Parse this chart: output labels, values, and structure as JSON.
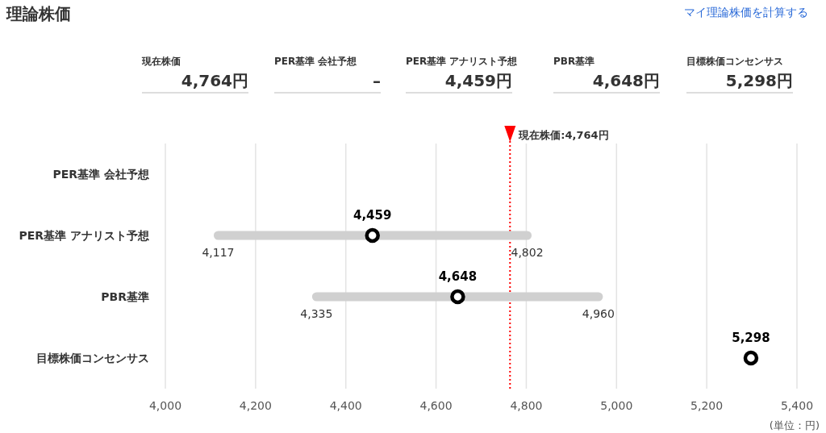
{
  "chart_data": [
    {
      "type": "other",
      "title": "理論株価",
      "annotations": [
        "マイ理論株価を計算する",
        "現在株価",
        "4,764円",
        "PER基準 会社予想",
        "–",
        "PER基準 アナリスト予想",
        "4,459円",
        "PBR基準",
        "4,648円",
        "目標株価コンセンサス",
        "5,298円"
      ]
    },
    {
      "type": "scatter",
      "orientation": "horizontal",
      "categories": [
        "PER基準 会社予想",
        "PER基準 アナリスト予想",
        "PBR基準",
        "目標株価コンセンサス"
      ],
      "series": [
        {
          "type": "bar",
          "color": "#d0d0d0",
          "base": [
            null,
            4117,
            4335,
            null
          ],
          "values": [
            null,
            685,
            625,
            null
          ]
        },
        {
          "type": "scatter",
          "color": "#000000",
          "values": [
            null,
            4459,
            4648,
            5298
          ],
          "value_labels": [
            null,
            "4,459",
            "4,648",
            "5,298"
          ]
        }
      ],
      "marker": "circle",
      "grid": "x",
      "xlim": [
        4000,
        5400
      ],
      "xticks": [
        {
          "value": 4000,
          "label": "4,000"
        },
        {
          "value": 4200,
          "label": "4,200"
        },
        {
          "value": 4400,
          "label": "4,400"
        },
        {
          "value": 4600,
          "label": "4,600"
        },
        {
          "value": 4800,
          "label": "4,800"
        },
        {
          "value": 5000,
          "label": "5,000"
        },
        {
          "value": 5200,
          "label": "5,200"
        },
        {
          "value": 5400,
          "label": "5,400"
        }
      ],
      "xlabel": "(単位：円)",
      "ref_lines": [
        {
          "axis": "x",
          "value": 4764,
          "label": "現在株価:4,764円",
          "color": "#ff0000",
          "line_style": "dotted"
        }
      ],
      "annotations": [
        {
          "text": "4,117",
          "x": 4117,
          "y": "PER基準 アナリスト予想"
        },
        {
          "text": "4,802",
          "x": 4802,
          "y": "PER基準 アナリスト予想"
        },
        {
          "text": "4,335",
          "x": 4335,
          "y": "PBR基準"
        },
        {
          "text": "4,960",
          "x": 4960,
          "y": "PBR基準"
        }
      ]
    }
  ]
}
